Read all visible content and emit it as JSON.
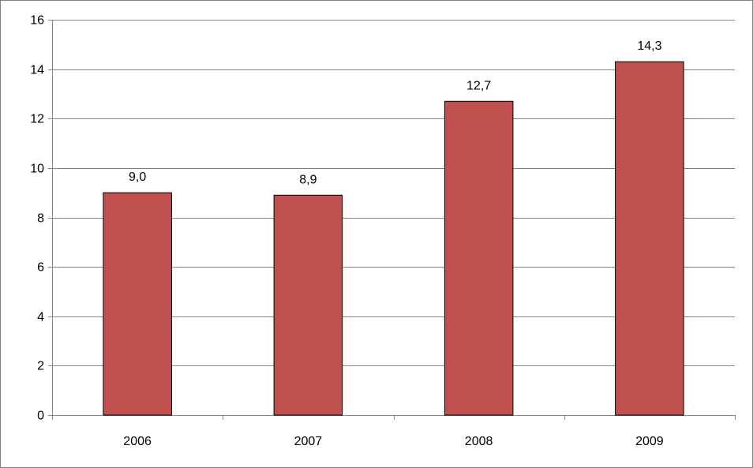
{
  "chart_data": {
    "type": "bar",
    "categories": [
      "2006",
      "2007",
      "2008",
      "2009"
    ],
    "values": [
      9.0,
      8.9,
      12.7,
      14.3
    ],
    "value_labels": [
      "9,0",
      "8,9",
      "12,7",
      "14,3"
    ],
    "y_ticks": [
      "0",
      "2",
      "4",
      "6",
      "8",
      "10",
      "12",
      "14",
      "16"
    ],
    "ylim": [
      0,
      16
    ],
    "y_step": 2,
    "grid": true,
    "legend": "none",
    "title": "",
    "xlabel": "",
    "ylabel": "",
    "colors": {
      "bar": "#c0504d",
      "bar_border": "#000000",
      "grid": "#868686"
    }
  }
}
